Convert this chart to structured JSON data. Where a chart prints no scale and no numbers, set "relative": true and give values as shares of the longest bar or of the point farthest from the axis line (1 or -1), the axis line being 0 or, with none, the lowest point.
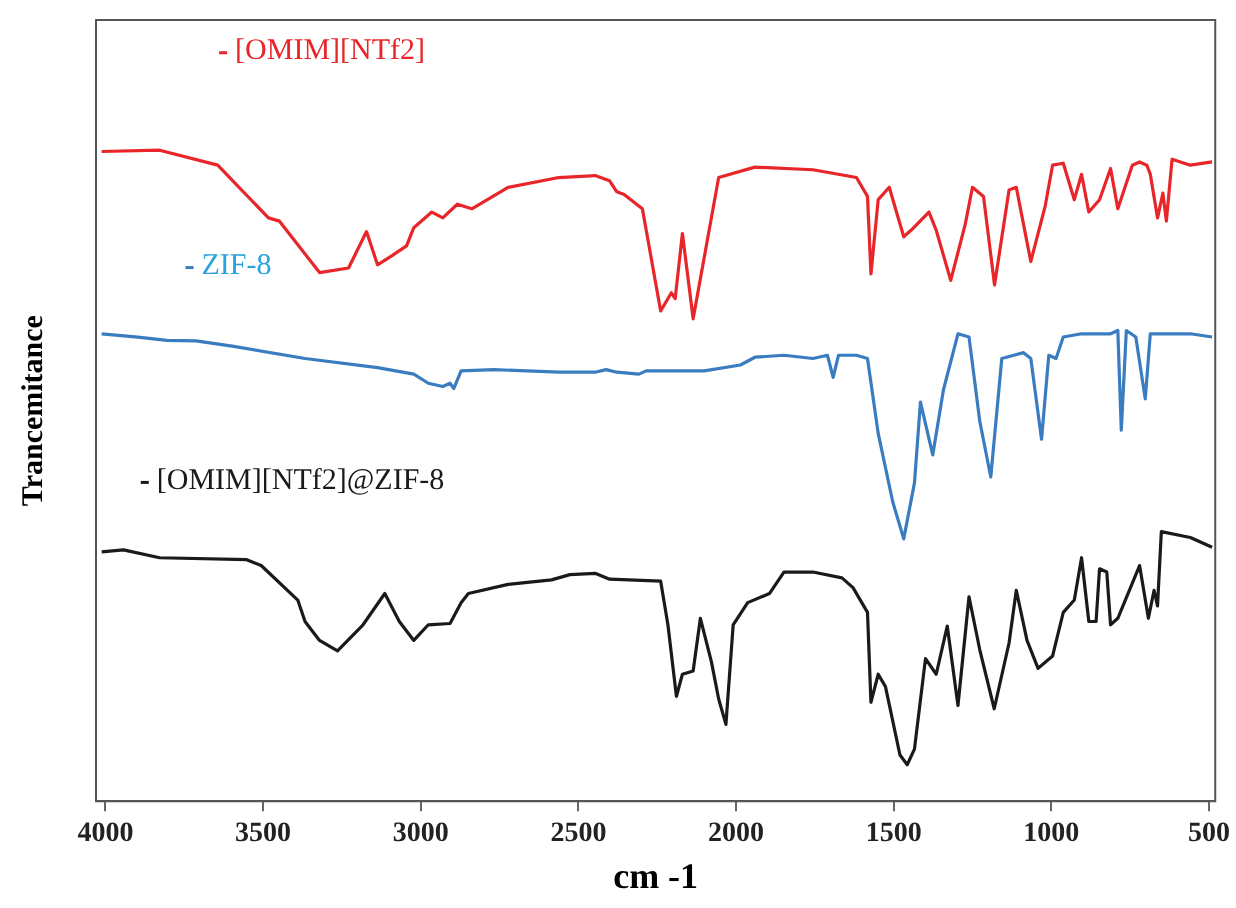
{
  "chart_data": {
    "type": "line",
    "relative": true,
    "ylabel": "Trancemitance",
    "xlabel": "cm -1",
    "xlim": [
      4030,
      480
    ],
    "xticks": [
      4000,
      3500,
      3000,
      2500,
      2000,
      1500,
      1000,
      500
    ],
    "grid": false,
    "legend": "top left",
    "marker": "none",
    "line_style": "solid",
    "series": [
      {
        "name": "[OMIM][NTf2]",
        "color": "#e8262a",
        "x": [
          4012,
          3828,
          3644,
          3483,
          3448,
          3321,
          3229,
          3172,
          3137,
          3091,
          3045,
          3022,
          2965,
          2930,
          2884,
          2838,
          2723,
          2562,
          2447,
          2401,
          2378,
          2355,
          2297,
          2239,
          2205,
          2193,
          2170,
          2136,
          2055,
          1940,
          1756,
          1618,
          1583,
          1572,
          1549,
          1514,
          1468,
          1445,
          1388,
          1365,
          1319,
          1273,
          1250,
          1215,
          1180,
          1134,
          1111,
          1065,
          1019,
          996,
          962,
          927,
          904,
          881,
          847,
          812,
          789,
          743,
          720,
          697,
          686,
          663,
          646,
          635,
          617,
          559,
          490
        ],
        "values": [
          0.998,
          1.0,
          0.977,
          0.896,
          0.891,
          0.812,
          0.819,
          0.875,
          0.824,
          0.838,
          0.853,
          0.881,
          0.905,
          0.896,
          0.917,
          0.91,
          0.943,
          0.958,
          0.961,
          0.953,
          0.936,
          0.932,
          0.91,
          0.753,
          0.781,
          0.772,
          0.872,
          0.741,
          0.958,
          0.974,
          0.97,
          0.958,
          0.929,
          0.81,
          0.924,
          0.943,
          0.867,
          0.877,
          0.905,
          0.877,
          0.8,
          0.886,
          0.943,
          0.929,
          0.793,
          0.939,
          0.943,
          0.829,
          0.915,
          0.977,
          0.98,
          0.924,
          0.963,
          0.905,
          0.924,
          0.972,
          0.91,
          0.977,
          0.982,
          0.977,
          0.963,
          0.896,
          0.934,
          0.891,
          0.986,
          0.977,
          0.982
        ]
      },
      {
        "name": "ZIF-8",
        "color": "#3a7cc0",
        "x": [
          4012,
          3897,
          3805,
          3713,
          3598,
          3367,
          3137,
          3022,
          2976,
          2930,
          2907,
          2895,
          2872,
          2769,
          2562,
          2447,
          2412,
          2378,
          2308,
          2285,
          2101,
          1986,
          1940,
          1848,
          1756,
          1710,
          1692,
          1675,
          1618,
          1583,
          1549,
          1503,
          1468,
          1434,
          1415,
          1376,
          1342,
          1296,
          1261,
          1227,
          1192,
          1157,
          1088,
          1065,
          1031,
          1008,
          985,
          962,
          904,
          812,
          789,
          778,
          762,
          732,
          702,
          686,
          559,
          490
        ],
        "values": [
          0.718,
          0.713,
          0.708,
          0.707,
          0.699,
          0.68,
          0.666,
          0.656,
          0.642,
          0.637,
          0.642,
          0.634,
          0.661,
          0.663,
          0.659,
          0.659,
          0.663,
          0.659,
          0.656,
          0.661,
          0.661,
          0.67,
          0.682,
          0.685,
          0.68,
          0.685,
          0.651,
          0.685,
          0.685,
          0.68,
          0.565,
          0.46,
          0.403,
          0.489,
          0.613,
          0.532,
          0.632,
          0.718,
          0.713,
          0.584,
          0.498,
          0.68,
          0.689,
          0.68,
          0.556,
          0.685,
          0.68,
          0.713,
          0.718,
          0.718,
          0.723,
          0.57,
          0.723,
          0.713,
          0.618,
          0.718,
          0.718,
          0.713
        ]
      },
      {
        "name": "[OMIM][NTf2]@ZIF-8",
        "color": "#1a1a1a",
        "x": [
          4012,
          3943,
          3828,
          3552,
          3506,
          3390,
          3367,
          3321,
          3264,
          3183,
          3114,
          3068,
          3022,
          2976,
          2907,
          2872,
          2849,
          2723,
          2585,
          2527,
          2447,
          2401,
          2239,
          2216,
          2189,
          2170,
          2136,
          2113,
          2078,
          2055,
          2032,
          2009,
          1963,
          1894,
          1848,
          1756,
          1664,
          1629,
          1583,
          1572,
          1549,
          1526,
          1480,
          1457,
          1434,
          1399,
          1365,
          1330,
          1296,
          1261,
          1227,
          1181,
          1134,
          1111,
          1077,
          1042,
          996,
          962,
          927,
          904,
          881,
          858,
          847,
          824,
          812,
          789,
          720,
          692,
          674,
          663,
          651,
          559,
          490
        ],
        "values": [
          0.383,
          0.386,
          0.374,
          0.371,
          0.362,
          0.309,
          0.276,
          0.247,
          0.231,
          0.271,
          0.319,
          0.276,
          0.247,
          0.271,
          0.273,
          0.305,
          0.319,
          0.333,
          0.34,
          0.348,
          0.35,
          0.341,
          0.338,
          0.271,
          0.161,
          0.195,
          0.2,
          0.281,
          0.214,
          0.157,
          0.118,
          0.271,
          0.305,
          0.319,
          0.352,
          0.352,
          0.343,
          0.328,
          0.29,
          0.152,
          0.195,
          0.176,
          0.071,
          0.056,
          0.08,
          0.219,
          0.195,
          0.269,
          0.147,
          0.314,
          0.233,
          0.142,
          0.243,
          0.324,
          0.247,
          0.204,
          0.223,
          0.29,
          0.309,
          0.374,
          0.276,
          0.276,
          0.357,
          0.352,
          0.271,
          0.281,
          0.362,
          0.281,
          0.324,
          0.3,
          0.414,
          0.405,
          0.39
        ]
      }
    ]
  }
}
